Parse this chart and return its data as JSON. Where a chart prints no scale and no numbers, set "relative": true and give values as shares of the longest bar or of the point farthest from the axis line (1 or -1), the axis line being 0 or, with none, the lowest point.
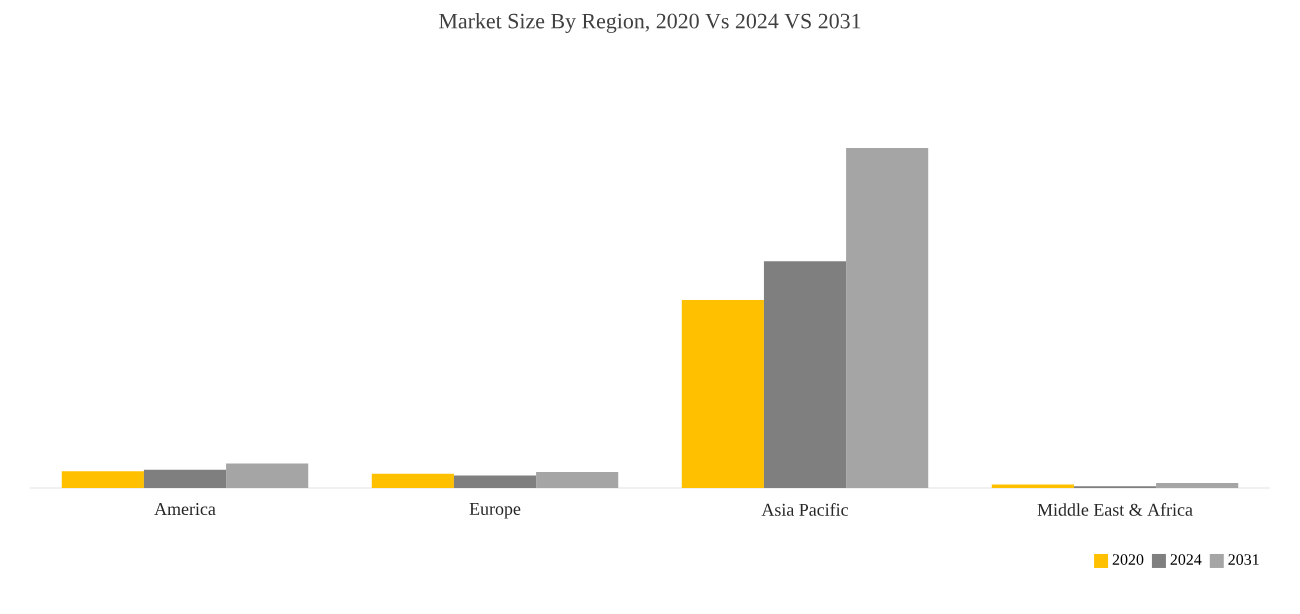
{
  "chart_data": {
    "type": "bar",
    "title": "Market Size By Region, 2020 Vs 2024 VS 2031",
    "relative": true,
    "legend": "bottom right",
    "categories": [
      "America",
      "Europe",
      "Asia Pacific",
      "Middle East & Africa"
    ],
    "series": [
      {
        "name": "2020",
        "color": "#ffc000",
        "values": [
          0.049,
          0.042,
          0.553,
          0.01
        ]
      },
      {
        "name": "2024",
        "color": "#7f7f7f",
        "values": [
          0.054,
          0.037,
          0.667,
          0.005
        ]
      },
      {
        "name": "2031",
        "color": "#a5a5a5",
        "values": [
          0.072,
          0.047,
          1,
          0.015
        ]
      }
    ]
  }
}
